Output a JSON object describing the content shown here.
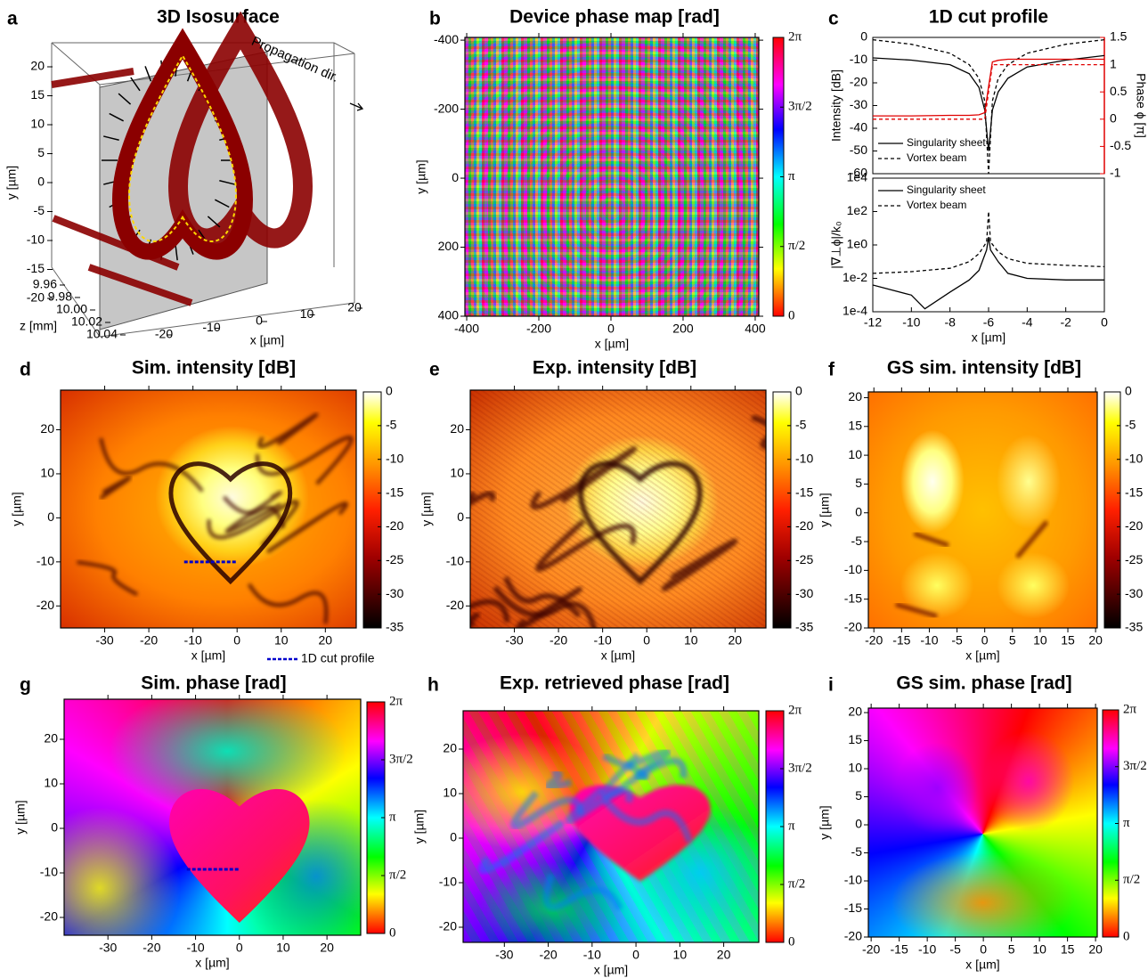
{
  "chart_data": [
    {
      "panel": "a",
      "type": "isosurface",
      "title": "3D Isosurface",
      "annotation": "Propagation dir.",
      "xlabel": "x [µm]",
      "ylabel": "y [µm]",
      "zlabel": "z [mm]",
      "xticks": [
        -20,
        -10,
        0,
        10,
        20
      ],
      "yticks": [
        20,
        15,
        10,
        5,
        0,
        -5,
        -10,
        -15,
        -20
      ],
      "zticks": [
        9.96,
        9.98,
        {
          "value": 10,
          "label": "10.00"
        },
        10.02,
        10.04
      ],
      "color": "#8b0000"
    },
    {
      "panel": "b",
      "type": "heatmap",
      "title": "Device phase map [rad]",
      "xlabel": "x [µm]",
      "ylabel": "y [µm]",
      "xlim": [
        -405,
        410
      ],
      "ylim": [
        400,
        -408
      ],
      "xticks": [
        -400,
        -200,
        0,
        200,
        400
      ],
      "yticks": [
        -400,
        -200,
        0,
        200,
        400
      ],
      "colormap": "hsv",
      "clim": [
        0,
        6.2832
      ],
      "cticks": [
        0,
        {
          "value": 1.5708,
          "label": "π/2"
        },
        {
          "value": 3.1416,
          "label": "π"
        },
        {
          "value": 4.7124,
          "label": "3π/2"
        },
        {
          "value": 6.2832,
          "label": "2π"
        }
      ]
    },
    {
      "panel": "c",
      "type": "line",
      "title": "1D cut profile",
      "plots": [
        {
          "ylabel": "Intensity [dB]",
          "y2label": "Phase ϕ [π]",
          "y2color": "#e00000",
          "xlim": [
            -12,
            0
          ],
          "ylim": [
            -60,
            0
          ],
          "yticks": [
            0,
            -10,
            -20,
            -30,
            -40,
            -50,
            -60
          ],
          "y2lim": [
            -1,
            1.5
          ],
          "y2ticks": [
            1.5,
            1,
            0.5,
            0,
            -0.5,
            -1
          ],
          "legend": "lower left",
          "x": [
            -12,
            -10,
            -8,
            -7,
            -6.5,
            -6.2,
            -6,
            -5.8,
            -5.5,
            -5,
            -4,
            -2,
            0
          ],
          "series": [
            {
              "name": "Singularity sheet",
              "color": "#000000",
              "style": "solid",
              "values": [
                -9,
                -10,
                -12,
                -16,
                -22,
                -32,
                -50,
                -32,
                -24,
                -18,
                -13,
                -10,
                -8
              ]
            },
            {
              "name": "Vortex beam",
              "color": "#000000",
              "style": "dashed",
              "values": [
                -1,
                -3,
                -7,
                -12,
                -18,
                -28,
                -60,
                -28,
                -18,
                -12,
                -7,
                -3,
                -1
              ]
            },
            {
              "color": "#e00000",
              "style": "solid",
              "axis": "y2",
              "values": [
                0.06,
                0.06,
                0.07,
                0.07,
                0.08,
                0.12,
                0.6,
                1.05,
                1.08,
                1.1,
                1.1,
                1.1,
                1.1
              ]
            },
            {
              "color": "#e00000",
              "style": "dashed",
              "axis": "y2",
              "values": [
                0,
                0,
                0,
                0,
                0,
                0,
                0.5,
                1,
                1,
                1,
                1,
                1,
                1
              ]
            }
          ]
        },
        {
          "ylabel": "|∇⊥ϕ|/k₀",
          "xlabel": "x [µm]",
          "log": true,
          "xlim": [
            -12,
            0
          ],
          "xticks": [
            -12,
            -10,
            -8,
            -6,
            -4,
            -2,
            0
          ],
          "ylim": [
            0.0001,
            10000
          ],
          "yticks": [
            {
              "value": 10000,
              "label": "1e4"
            },
            {
              "value": 100,
              "label": "1e2"
            },
            {
              "value": 1,
              "label": "1e0"
            },
            {
              "value": 0.01,
              "label": "1e-2"
            },
            {
              "value": 0.0001,
              "label": "1e-4"
            }
          ],
          "legend": "upper left",
          "x": [
            -12,
            -10,
            -9.3,
            -8,
            -7,
            -6.5,
            -6.1,
            -6,
            -5.9,
            -5.5,
            -5,
            -4,
            -2,
            0
          ],
          "series": [
            {
              "name": "Singularity sheet",
              "color": "#000000",
              "style": "solid",
              "values": [
                0.004,
                0.001,
                0.00015,
                0.0015,
                0.008,
                0.03,
                0.5,
                3,
                0.5,
                0.1,
                0.02,
                0.01,
                0.008,
                0.008
              ]
            },
            {
              "name": "Vortex beam",
              "color": "#000000",
              "style": "dashed",
              "values": [
                0.02,
                0.025,
                0.03,
                0.04,
                0.1,
                0.3,
                1.5,
                100,
                1.5,
                0.4,
                0.15,
                0.08,
                0.06,
                0.05
              ]
            }
          ]
        }
      ]
    },
    {
      "panel": "d",
      "type": "heatmap",
      "title": "Sim. intensity [dB]",
      "xlabel": "x [µm]",
      "ylabel": "y [µm]",
      "xlim": [
        -40,
        27
      ],
      "ylim": [
        -25,
        29
      ],
      "xticks": [
        -30,
        -20,
        -10,
        0,
        10,
        20
      ],
      "yticks": [
        -20,
        -10,
        0,
        10,
        20
      ],
      "colormap": "hot",
      "clim": [
        -35,
        0
      ],
      "cticks": [
        0,
        -5,
        -10,
        -15,
        -20,
        -25,
        -30,
        -35
      ],
      "cut_x": [
        -12,
        0
      ],
      "cut_y": -10,
      "cut_label": "1D cut profile",
      "cut_color": "#0000cc"
    },
    {
      "panel": "e",
      "type": "heatmap",
      "title": "Exp. intensity [dB]",
      "xlabel": "x [µm]",
      "ylabel": "y [µm]",
      "xlim": [
        -40,
        27
      ],
      "ylim": [
        -25,
        29
      ],
      "xticks": [
        -30,
        -20,
        -10,
        0,
        10,
        20
      ],
      "yticks": [
        -20,
        -10,
        0,
        10,
        20
      ],
      "colormap": "hot",
      "clim": [
        -35,
        0
      ],
      "cticks": [
        0,
        -5,
        -10,
        -15,
        -20,
        -25,
        -30,
        -35
      ]
    },
    {
      "panel": "f",
      "type": "heatmap",
      "title": "GS sim. intensity [dB]",
      "xlabel": "x [µm]",
      "ylabel": "y [µm]",
      "xlim": [
        -21,
        20.3
      ],
      "ylim": [
        -20,
        21
      ],
      "xticks": [
        -20,
        -15,
        -10,
        -5,
        0,
        5,
        10,
        15,
        20
      ],
      "yticks": [
        -20,
        -15,
        -10,
        -5,
        0,
        5,
        10,
        15,
        20
      ],
      "colormap": "hot",
      "clim": [
        -35,
        0
      ],
      "cticks": [
        0,
        -5,
        -10,
        -15,
        -20,
        -25,
        -30,
        -35
      ]
    },
    {
      "panel": "g",
      "type": "heatmap",
      "title": "Sim. phase [rad]",
      "xlabel": "x [µm]",
      "ylabel": "y [µm]",
      "xlim": [
        -40,
        27.7
      ],
      "ylim": [
        -24,
        29
      ],
      "xticks": [
        -30,
        -20,
        -10,
        0,
        10,
        20
      ],
      "yticks": [
        -20,
        -10,
        0,
        10,
        20
      ],
      "colormap": "hsv",
      "clim": [
        0,
        6.2832
      ],
      "cticks": [
        0,
        {
          "value": 1.5708,
          "label": "π/2"
        },
        {
          "value": 3.1416,
          "label": "π"
        },
        {
          "value": 4.7124,
          "label": "3π/2"
        },
        {
          "value": 6.2832,
          "label": "2π"
        }
      ],
      "cut_x": [
        -12,
        0
      ],
      "cut_y": -9.2,
      "cut_color": "#0000cc"
    },
    {
      "panel": "h",
      "type": "heatmap",
      "title": "Exp. retrieved phase [rad]",
      "xlabel": "x [µm]",
      "ylabel": "y [µm]",
      "xlim": [
        -39.4,
        28
      ],
      "ylim": [
        -23.4,
        28.6
      ],
      "xticks": [
        -30,
        -20,
        -10,
        0,
        10,
        20
      ],
      "yticks": [
        -20,
        -10,
        0,
        10,
        20
      ],
      "colormap": "hsv",
      "clim": [
        0,
        6.2832
      ],
      "cticks": [
        0,
        {
          "value": 1.5708,
          "label": "π/2"
        },
        {
          "value": 3.1416,
          "label": "π"
        },
        {
          "value": 4.7124,
          "label": "3π/2"
        },
        {
          "value": 6.2832,
          "label": "2π"
        }
      ]
    },
    {
      "panel": "i",
      "type": "heatmap",
      "title": "GS sim. phase [rad]",
      "xlabel": "x [µm]",
      "ylabel": "y [µm]",
      "xlim": [
        -20.5,
        20.3
      ],
      "ylim": [
        -20,
        20.8
      ],
      "xticks": [
        -20,
        -15,
        -10,
        -5,
        0,
        5,
        10,
        15,
        20
      ],
      "yticks": [
        -20,
        -15,
        -10,
        -5,
        0,
        5,
        10,
        15,
        20
      ],
      "colormap": "hsv",
      "clim": [
        0,
        6.2832
      ],
      "cticks": [
        0,
        {
          "value": 1.5708,
          "label": "π/2"
        },
        {
          "value": 3.1416,
          "label": "π"
        },
        {
          "value": 4.7124,
          "label": "3π/2"
        },
        {
          "value": 6.2832,
          "label": "2π"
        }
      ]
    }
  ]
}
